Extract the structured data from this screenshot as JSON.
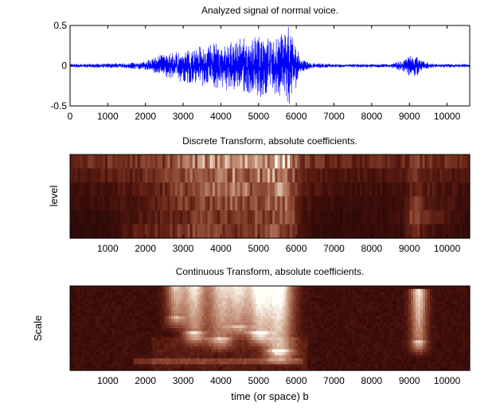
{
  "chart_data": [
    {
      "type": "line",
      "title": "Analyzed signal of normal voice.",
      "xlabel": "",
      "ylabel": "",
      "xlim": [
        0,
        10600
      ],
      "ylim": [
        -0.5,
        0.5
      ],
      "x_ticks": [
        "0",
        "1000",
        "2000",
        "3000",
        "4000",
        "5000",
        "6000",
        "7000",
        "8000",
        "9000",
        "10000"
      ],
      "y_ticks": [
        "0.5",
        "0",
        "-0.5"
      ],
      "line_color": "#0000ff",
      "envelope": {
        "x": [
          0,
          1500,
          2000,
          2300,
          2800,
          3500,
          4200,
          5000,
          5500,
          5800,
          5950,
          6100,
          6400,
          7000,
          8500,
          8800,
          9000,
          9200,
          9300,
          9500,
          9700,
          10600
        ],
        "amp": [
          0.02,
          0.03,
          0.05,
          0.1,
          0.16,
          0.22,
          0.26,
          0.33,
          0.36,
          0.44,
          0.3,
          0.08,
          0.03,
          0.02,
          0.02,
          0.06,
          0.11,
          0.11,
          0.06,
          0.03,
          0.02,
          0.02
        ]
      },
      "grid": false
    },
    {
      "type": "heatmap",
      "title": "Discrete Transform, absolute coefficients.",
      "xlabel": "",
      "ylabel": "level",
      "xlim": [
        0,
        10600
      ],
      "x_ticks": [
        "1000",
        "2000",
        "3000",
        "4000",
        "5000",
        "6000",
        "7000",
        "8000",
        "9000",
        "10000"
      ],
      "rows": 6,
      "colormap": "pink",
      "row_intensity": [
        {
          "x": [
            0,
            1000,
            2300,
            3000,
            3800,
            4300,
            5000,
            5600,
            5900,
            6100,
            7000,
            8800,
            9200,
            9400,
            10600
          ],
          "v": [
            0.25,
            0.3,
            0.35,
            0.55,
            0.7,
            0.8,
            0.75,
            0.85,
            0.7,
            0.35,
            0.25,
            0.25,
            0.35,
            0.3,
            0.25
          ]
        },
        {
          "x": [
            0,
            1000,
            2300,
            3000,
            3800,
            4300,
            5000,
            5600,
            5900,
            6100,
            7000,
            8800,
            9200,
            9400,
            10600
          ],
          "v": [
            0.15,
            0.2,
            0.3,
            0.45,
            0.55,
            0.6,
            0.6,
            0.7,
            0.55,
            0.25,
            0.15,
            0.15,
            0.3,
            0.2,
            0.15
          ]
        },
        {
          "x": [
            0,
            1000,
            2300,
            3000,
            3800,
            4300,
            5000,
            5600,
            5900,
            6100,
            7000,
            8800,
            9200,
            9400,
            10600
          ],
          "v": [
            0.1,
            0.12,
            0.25,
            0.4,
            0.5,
            0.55,
            0.55,
            0.65,
            0.55,
            0.2,
            0.1,
            0.1,
            0.3,
            0.2,
            0.1
          ]
        },
        {
          "x": [
            0,
            1000,
            2300,
            3000,
            3800,
            4300,
            5000,
            5600,
            5900,
            6100,
            7000,
            8800,
            9200,
            9400,
            10600
          ],
          "v": [
            0.08,
            0.1,
            0.2,
            0.35,
            0.4,
            0.45,
            0.45,
            0.55,
            0.45,
            0.15,
            0.08,
            0.08,
            0.35,
            0.2,
            0.08
          ]
        },
        {
          "x": [
            0,
            1000,
            2300,
            3000,
            3800,
            4300,
            5000,
            5600,
            5900,
            6100,
            7000,
            8800,
            9200,
            9400,
            10600
          ],
          "v": [
            0.05,
            0.06,
            0.2,
            0.3,
            0.35,
            0.35,
            0.4,
            0.45,
            0.4,
            0.12,
            0.05,
            0.1,
            0.55,
            0.25,
            0.05
          ]
        },
        {
          "x": [
            0,
            1000,
            2300,
            3000,
            3800,
            4300,
            5000,
            5600,
            5900,
            6100,
            7000,
            8800,
            9200,
            9400,
            10600
          ],
          "v": [
            0.04,
            0.05,
            0.3,
            0.35,
            0.35,
            0.35,
            0.4,
            0.45,
            0.4,
            0.1,
            0.05,
            0.08,
            0.3,
            0.15,
            0.05
          ]
        }
      ],
      "grid": false
    },
    {
      "type": "heatmap",
      "title": "Continuous Transform, absolute coefficients.",
      "xlabel": "time (or space) b",
      "ylabel": "Scale",
      "xlim": [
        0,
        10600
      ],
      "x_ticks": [
        "1000",
        "2000",
        "3000",
        "4000",
        "5000",
        "6000",
        "7000",
        "8000",
        "9000",
        "10000"
      ],
      "colormap": "pink",
      "blobs": [
        {
          "x": 2800,
          "w": 250,
          "row0": 0.0,
          "row1": 0.35,
          "v": 0.75
        },
        {
          "x": 3300,
          "w": 300,
          "row0": 0.0,
          "row1": 0.55,
          "v": 0.85
        },
        {
          "x": 4000,
          "w": 350,
          "row0": 0.0,
          "row1": 0.6,
          "v": 0.8
        },
        {
          "x": 4500,
          "w": 280,
          "row0": 0.0,
          "row1": 0.45,
          "v": 0.75
        },
        {
          "x": 5000,
          "w": 300,
          "row0": 0.0,
          "row1": 0.55,
          "v": 0.9
        },
        {
          "x": 5550,
          "w": 380,
          "row0": 0.0,
          "row1": 0.75,
          "v": 1.0
        },
        {
          "x": 9250,
          "w": 220,
          "row0": 0.05,
          "row1": 0.65,
          "v": 0.85
        }
      ],
      "grid": false
    }
  ]
}
